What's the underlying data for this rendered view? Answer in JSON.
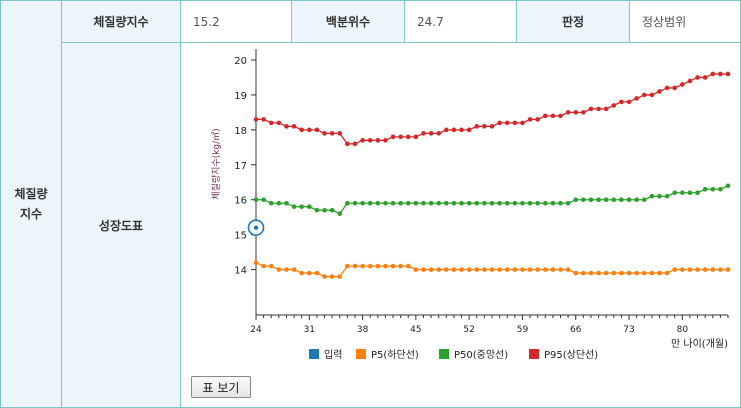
{
  "row_label": "체질량\n지수",
  "header": {
    "bmi_label": "체질량지수",
    "bmi_value": "15.2",
    "percentile_label": "백분위수",
    "percentile_value": "24.7",
    "judgement_label": "판정",
    "judgement_value": "정상범위"
  },
  "chart_section_label": "성장도표",
  "table_button_label": "표 보기",
  "colors": {
    "input": "#1f77b4",
    "p5": "#ff7f0e",
    "p50": "#2ca02c",
    "p95": "#d62728",
    "border": "#7fc5c9",
    "header_bg": "#ecf5fb"
  },
  "chart_data": {
    "type": "line",
    "ylabel": "체질량지수(kg/㎡)",
    "xlabel": "만 나이(개월)",
    "xlim": [
      24,
      86
    ],
    "ylim": [
      12.7,
      20.2
    ],
    "xticks": [
      24,
      31,
      38,
      45,
      52,
      59,
      66,
      73,
      80
    ],
    "yticks": [
      14,
      15,
      16,
      17,
      18,
      19,
      20
    ],
    "legend_position": "bottom",
    "input_point": {
      "x": 24,
      "y": 15.2
    },
    "series": [
      {
        "name": "입력",
        "key": "input",
        "values": []
      },
      {
        "name": "P5(하단선)",
        "key": "p5",
        "values": [
          14.2,
          14.1,
          14.1,
          14.0,
          14.0,
          14.0,
          13.9,
          13.9,
          13.9,
          13.8,
          13.8,
          13.8,
          14.1,
          14.1,
          14.1,
          14.1,
          14.1,
          14.1,
          14.1,
          14.1,
          14.1,
          14.0,
          14.0,
          14.0,
          14.0,
          14.0,
          14.0,
          14.0,
          14.0,
          14.0,
          14.0,
          14.0,
          14.0,
          14.0,
          14.0,
          14.0,
          14.0,
          14.0,
          14.0,
          14.0,
          14.0,
          14.0,
          13.9,
          13.9,
          13.9,
          13.9,
          13.9,
          13.9,
          13.9,
          13.9,
          13.9,
          13.9,
          13.9,
          13.9,
          13.9,
          14.0,
          14.0,
          14.0,
          14.0,
          14.0,
          14.0,
          14.0,
          14.0
        ]
      },
      {
        "name": "P50(중앙선)",
        "key": "p50",
        "values": [
          16.0,
          16.0,
          15.9,
          15.9,
          15.9,
          15.8,
          15.8,
          15.8,
          15.7,
          15.7,
          15.7,
          15.6,
          15.9,
          15.9,
          15.9,
          15.9,
          15.9,
          15.9,
          15.9,
          15.9,
          15.9,
          15.9,
          15.9,
          15.9,
          15.9,
          15.9,
          15.9,
          15.9,
          15.9,
          15.9,
          15.9,
          15.9,
          15.9,
          15.9,
          15.9,
          15.9,
          15.9,
          15.9,
          15.9,
          15.9,
          15.9,
          15.9,
          16.0,
          16.0,
          16.0,
          16.0,
          16.0,
          16.0,
          16.0,
          16.0,
          16.0,
          16.0,
          16.1,
          16.1,
          16.1,
          16.2,
          16.2,
          16.2,
          16.2,
          16.3,
          16.3,
          16.3,
          16.4
        ]
      },
      {
        "name": "P95(상단선)",
        "key": "p95",
        "values": [
          18.3,
          18.3,
          18.2,
          18.2,
          18.1,
          18.1,
          18.0,
          18.0,
          18.0,
          17.9,
          17.9,
          17.9,
          17.6,
          17.6,
          17.7,
          17.7,
          17.7,
          17.7,
          17.8,
          17.8,
          17.8,
          17.8,
          17.9,
          17.9,
          17.9,
          18.0,
          18.0,
          18.0,
          18.0,
          18.1,
          18.1,
          18.1,
          18.2,
          18.2,
          18.2,
          18.2,
          18.3,
          18.3,
          18.4,
          18.4,
          18.4,
          18.5,
          18.5,
          18.5,
          18.6,
          18.6,
          18.6,
          18.7,
          18.8,
          18.8,
          18.9,
          19.0,
          19.0,
          19.1,
          19.2,
          19.2,
          19.3,
          19.4,
          19.5,
          19.5,
          19.6,
          19.6,
          19.6
        ]
      }
    ]
  }
}
